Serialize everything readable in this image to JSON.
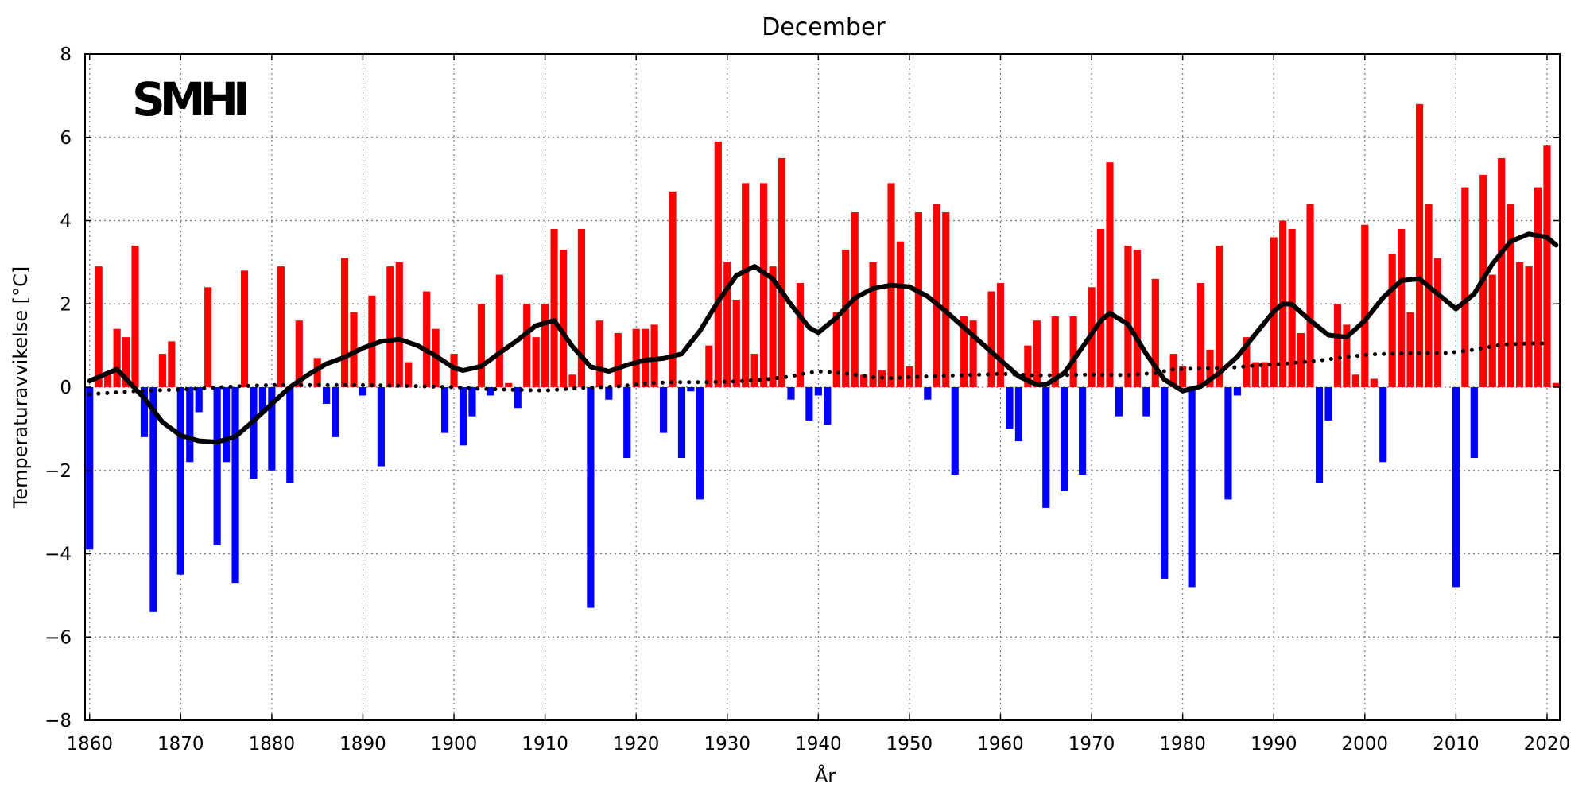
{
  "chart_data": {
    "type": "bar",
    "title": "December",
    "xlabel": "År",
    "ylabel": "Temperaturavvikelse [°C]",
    "logo": "SMHI",
    "xlim": [
      1859.5,
      2021.4
    ],
    "ylim": [
      -8,
      8
    ],
    "grid": true,
    "x_ticks": [
      "1860",
      "1870",
      "1880",
      "1890",
      "1900",
      "1910",
      "1920",
      "1930",
      "1940",
      "1950",
      "1960",
      "1970",
      "1980",
      "1990",
      "2000",
      "2010",
      "2020"
    ],
    "y_ticks": [
      "−8",
      "−6",
      "−4",
      "−2",
      "0",
      "2",
      "4",
      "6",
      "8"
    ],
    "colors": {
      "positive": "#ff0000",
      "negative": "#0000ff",
      "lines": "#000000"
    },
    "x": [
      1860,
      1861,
      1862,
      1863,
      1864,
      1865,
      1866,
      1867,
      1868,
      1869,
      1870,
      1871,
      1872,
      1873,
      1874,
      1875,
      1876,
      1877,
      1878,
      1879,
      1880,
      1881,
      1882,
      1883,
      1884,
      1885,
      1886,
      1887,
      1888,
      1889,
      1890,
      1891,
      1892,
      1893,
      1894,
      1895,
      1896,
      1897,
      1898,
      1899,
      1900,
      1901,
      1902,
      1903,
      1904,
      1905,
      1906,
      1907,
      1908,
      1909,
      1910,
      1911,
      1912,
      1913,
      1914,
      1915,
      1916,
      1917,
      1918,
      1919,
      1920,
      1921,
      1922,
      1923,
      1924,
      1925,
      1926,
      1927,
      1928,
      1929,
      1930,
      1931,
      1932,
      1933,
      1934,
      1935,
      1936,
      1937,
      1938,
      1939,
      1940,
      1941,
      1942,
      1943,
      1944,
      1945,
      1946,
      1947,
      1948,
      1949,
      1950,
      1951,
      1952,
      1953,
      1954,
      1955,
      1956,
      1957,
      1958,
      1959,
      1960,
      1961,
      1962,
      1963,
      1964,
      1965,
      1966,
      1967,
      1968,
      1969,
      1970,
      1971,
      1972,
      1973,
      1974,
      1975,
      1976,
      1977,
      1978,
      1979,
      1980,
      1981,
      1982,
      1983,
      1984,
      1985,
      1986,
      1987,
      1988,
      1989,
      1990,
      1991,
      1992,
      1993,
      1994,
      1995,
      1996,
      1997,
      1998,
      1999,
      2000,
      2001,
      2002,
      2003,
      2004,
      2005,
      2006,
      2007,
      2008,
      2009,
      2010,
      2011,
      2012,
      2013,
      2014,
      2015,
      2016,
      2017,
      2018,
      2019,
      2020,
      2021
    ],
    "values": [
      -3.9,
      2.9,
      0.3,
      1.4,
      1.2,
      3.4,
      -1.2,
      -5.4,
      0.8,
      1.1,
      -4.5,
      -1.8,
      -0.6,
      2.4,
      -3.8,
      -1.8,
      -4.7,
      2.8,
      -2.2,
      -0.6,
      -2.0,
      2.9,
      -2.3,
      1.6,
      0.0,
      0.7,
      -0.4,
      -1.2,
      3.1,
      1.8,
      -0.2,
      2.2,
      -1.9,
      2.9,
      3.0,
      0.6,
      0.0,
      2.3,
      1.4,
      -1.1,
      0.8,
      -1.4,
      -0.7,
      2.0,
      -0.2,
      2.7,
      0.1,
      -0.5,
      2.0,
      1.2,
      2.0,
      3.8,
      3.3,
      0.3,
      3.8,
      -5.3,
      1.6,
      -0.3,
      1.3,
      -1.7,
      1.4,
      1.4,
      1.5,
      -1.1,
      4.7,
      -1.7,
      -0.1,
      -2.7,
      1.0,
      5.9,
      3.0,
      2.1,
      4.9,
      0.8,
      4.9,
      2.9,
      5.5,
      -0.3,
      2.5,
      -0.8,
      -0.2,
      -0.9,
      1.8,
      3.3,
      4.2,
      0.3,
      3.0,
      0.4,
      4.9,
      3.5,
      0.5,
      4.2,
      -0.3,
      4.4,
      4.2,
      -2.1,
      1.7,
      1.6,
      0.0,
      2.3,
      2.5,
      -1.0,
      -1.3,
      1.0,
      1.6,
      -2.9,
      1.7,
      -2.5,
      1.7,
      -2.1,
      2.4,
      3.8,
      5.4,
      -0.7,
      3.4,
      3.3,
      -0.7,
      2.6,
      -4.6,
      0.8,
      0.5,
      -4.8,
      2.5,
      0.9,
      3.4,
      -2.7,
      -0.2,
      1.2,
      0.6,
      0.6,
      3.6,
      4.0,
      3.8,
      1.3,
      4.4,
      -2.3,
      -0.8,
      2.0,
      1.5,
      0.3,
      3.9,
      0.2,
      -1.8,
      3.2,
      3.8,
      1.8,
      6.8,
      4.4,
      3.1,
      0.0,
      -4.8,
      4.8,
      -1.7,
      5.1,
      2.7,
      5.5,
      4.4,
      3.0,
      2.9,
      4.8,
      5.8,
      0.1
    ],
    "smoothed": {
      "x": [
        1860,
        1863,
        1866,
        1868,
        1870,
        1872,
        1874,
        1876,
        1878,
        1880,
        1882,
        1884,
        1886,
        1888,
        1890,
        1892,
        1894,
        1896,
        1898,
        1900,
        1901,
        1903,
        1905,
        1907,
        1909,
        1911,
        1913,
        1915,
        1917,
        1919,
        1921,
        1923,
        1925,
        1927,
        1929,
        1931,
        1933,
        1935,
        1937,
        1939,
        1940,
        1942,
        1944,
        1946,
        1948,
        1950,
        1952,
        1954,
        1956,
        1958,
        1960,
        1962,
        1964,
        1965,
        1967,
        1969,
        1971,
        1972,
        1974,
        1976,
        1978,
        1980,
        1982,
        1984,
        1986,
        1988,
        1990,
        1991,
        1992,
        1994,
        1996,
        1998,
        2000,
        2002,
        2004,
        2006,
        2008,
        2010,
        2012,
        2014,
        2016,
        2018,
        2020,
        2021
      ],
      "y": [
        0.15,
        0.43,
        -0.27,
        -0.84,
        -1.16,
        -1.29,
        -1.32,
        -1.19,
        -0.81,
        -0.4,
        0.0,
        0.3,
        0.56,
        0.72,
        0.94,
        1.1,
        1.15,
        1.0,
        0.75,
        0.46,
        0.4,
        0.5,
        0.82,
        1.13,
        1.48,
        1.6,
        0.98,
        0.49,
        0.38,
        0.53,
        0.65,
        0.69,
        0.8,
        1.35,
        2.06,
        2.68,
        2.9,
        2.6,
        1.98,
        1.43,
        1.31,
        1.67,
        2.14,
        2.37,
        2.45,
        2.41,
        2.18,
        1.82,
        1.43,
        1.04,
        0.65,
        0.26,
        0.06,
        0.06,
        0.34,
        0.96,
        1.59,
        1.78,
        1.51,
        0.8,
        0.18,
        -0.09,
        0.02,
        0.34,
        0.73,
        1.28,
        1.82,
        2.0,
        1.99,
        1.6,
        1.25,
        1.2,
        1.6,
        2.15,
        2.56,
        2.6,
        2.24,
        1.88,
        2.24,
        2.96,
        3.5,
        3.68,
        3.6,
        3.41
      ]
    },
    "trend": {
      "x": [
        1860,
        1866,
        1870,
        1876,
        1880,
        1885,
        1890,
        1895,
        1900,
        1903,
        1906,
        1910,
        1913,
        1916,
        1918,
        1921,
        1924,
        1928,
        1931,
        1934,
        1937,
        1939,
        1940,
        1942,
        1944,
        1946,
        1948,
        1950,
        1955,
        1958,
        1960,
        1964,
        1970,
        1974,
        1977,
        1979,
        1982,
        1985,
        1988,
        1991,
        1995,
        1998,
        2001,
        2005,
        2009,
        2012,
        2015,
        2018,
        2020
      ],
      "y": [
        -0.17,
        -0.08,
        -0.06,
        0.02,
        0.05,
        0.05,
        0.05,
        0.03,
        0.0,
        -0.04,
        -0.06,
        -0.08,
        -0.03,
        0.0,
        0.02,
        0.09,
        0.12,
        0.12,
        0.14,
        0.18,
        0.26,
        0.35,
        0.38,
        0.35,
        0.3,
        0.24,
        0.22,
        0.24,
        0.28,
        0.3,
        0.32,
        0.28,
        0.3,
        0.29,
        0.34,
        0.43,
        0.45,
        0.46,
        0.52,
        0.56,
        0.64,
        0.73,
        0.79,
        0.82,
        0.82,
        0.9,
        1.02,
        1.05,
        1.05
      ]
    }
  }
}
